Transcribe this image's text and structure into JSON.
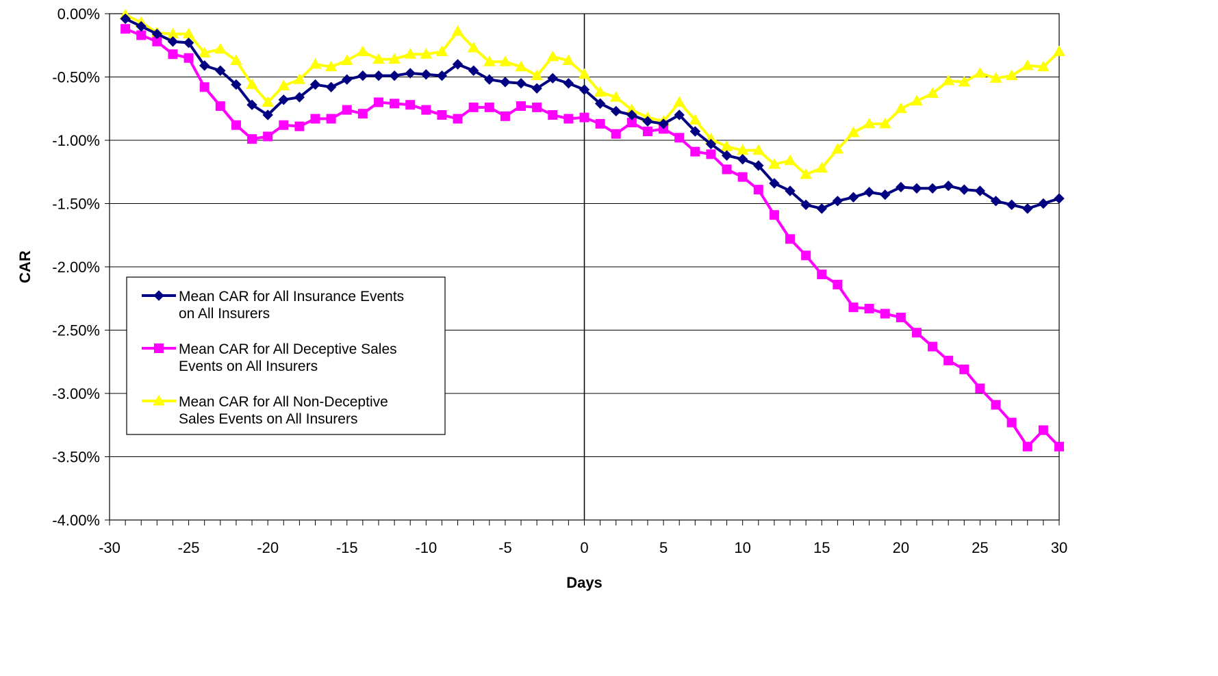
{
  "chart_data": {
    "type": "line",
    "xlabel": "Days",
    "ylabel": "CAR",
    "xlim": [
      -30,
      30
    ],
    "ylim": [
      -4.0,
      0.0
    ],
    "y_ticks": [
      0.0,
      -0.5,
      -1.0,
      -1.5,
      -2.0,
      -2.5,
      -3.0,
      -3.5,
      -4.0
    ],
    "y_tick_labels": [
      "0.00%",
      "-0.50%",
      "-1.00%",
      "-1.50%",
      "-2.00%",
      "-2.50%",
      "-3.00%",
      "-3.50%",
      "-4.00%"
    ],
    "x_ticks": [
      -30,
      -25,
      -20,
      -15,
      -10,
      -5,
      0,
      5,
      10,
      15,
      20,
      25,
      30
    ],
    "x_tick_labels": [
      "-30",
      "-25",
      "-20",
      "-15",
      "-10",
      "-5",
      "0",
      "5",
      "10",
      "15",
      "20",
      "25",
      "30"
    ],
    "grid": "horizontal",
    "reference_line_x": 0,
    "legend_position": "middle-left",
    "x": [
      -29,
      -28,
      -27,
      -26,
      -25,
      -24,
      -23,
      -22,
      -21,
      -20,
      -19,
      -18,
      -17,
      -16,
      -15,
      -14,
      -13,
      -12,
      -11,
      -10,
      -9,
      -8,
      -7,
      -6,
      -5,
      -4,
      -3,
      -2,
      -1,
      0,
      1,
      2,
      3,
      4,
      5,
      6,
      7,
      8,
      9,
      10,
      11,
      12,
      13,
      14,
      15,
      16,
      17,
      18,
      19,
      20,
      21,
      22,
      23,
      24,
      25,
      26,
      27,
      28,
      29,
      30
    ],
    "series": [
      {
        "name": "Mean CAR for All Insurance Events on All Insurers",
        "legend_lines": [
          "Mean CAR for All Insurance Events",
          "on All Insurers"
        ],
        "color": "#000080",
        "marker": "diamond",
        "values": [
          -0.04,
          -0.1,
          -0.16,
          -0.22,
          -0.23,
          -0.41,
          -0.45,
          -0.56,
          -0.72,
          -0.8,
          -0.68,
          -0.66,
          -0.56,
          -0.58,
          -0.52,
          -0.49,
          -0.49,
          -0.49,
          -0.47,
          -0.48,
          -0.49,
          -0.4,
          -0.45,
          -0.52,
          -0.54,
          -0.55,
          -0.59,
          -0.51,
          -0.55,
          -0.6,
          -0.71,
          -0.77,
          -0.8,
          -0.85,
          -0.87,
          -0.8,
          -0.93,
          -1.03,
          -1.12,
          -1.15,
          -1.2,
          -1.34,
          -1.4,
          -1.51,
          -1.54,
          -1.48,
          -1.45,
          -1.41,
          -1.43,
          -1.37,
          -1.38,
          -1.38,
          -1.36,
          -1.39,
          -1.4,
          -1.48,
          -1.51,
          -1.54,
          -1.5,
          -1.46
        ]
      },
      {
        "name": "Mean CAR for All Deceptive Sales Events on All Insurers",
        "legend_lines": [
          "Mean CAR for All Deceptive Sales",
          "Events on All Insurers"
        ],
        "color": "#ff00ff",
        "marker": "square",
        "values": [
          -0.12,
          -0.17,
          -0.22,
          -0.32,
          -0.35,
          -0.58,
          -0.73,
          -0.88,
          -0.99,
          -0.97,
          -0.88,
          -0.89,
          -0.83,
          -0.83,
          -0.76,
          -0.79,
          -0.7,
          -0.71,
          -0.72,
          -0.76,
          -0.8,
          -0.83,
          -0.74,
          -0.74,
          -0.81,
          -0.73,
          -0.74,
          -0.8,
          -0.83,
          -0.82,
          -0.87,
          -0.95,
          -0.86,
          -0.93,
          -0.91,
          -0.98,
          -1.09,
          -1.11,
          -1.23,
          -1.29,
          -1.39,
          -1.59,
          -1.78,
          -1.91,
          -2.06,
          -2.14,
          -2.32,
          -2.33,
          -2.37,
          -2.4,
          -2.52,
          -2.63,
          -2.74,
          -2.81,
          -2.96,
          -3.09,
          -3.23,
          -3.42,
          -3.29,
          -3.42
        ]
      },
      {
        "name": "Mean CAR for All Non-Deceptive Sales Events on All Insurers",
        "legend_lines": [
          "Mean CAR for All Non-Deceptive",
          "Sales Events on All Insurers"
        ],
        "color": "#ffff00",
        "marker": "triangle",
        "values": [
          -0.01,
          -0.07,
          -0.15,
          -0.16,
          -0.16,
          -0.31,
          -0.28,
          -0.37,
          -0.56,
          -0.7,
          -0.57,
          -0.52,
          -0.4,
          -0.42,
          -0.37,
          -0.3,
          -0.36,
          -0.36,
          -0.32,
          -0.32,
          -0.3,
          -0.14,
          -0.27,
          -0.38,
          -0.38,
          -0.42,
          -0.49,
          -0.34,
          -0.37,
          -0.48,
          -0.62,
          -0.66,
          -0.76,
          -0.82,
          -0.85,
          -0.7,
          -0.84,
          -0.99,
          -1.05,
          -1.08,
          -1.08,
          -1.19,
          -1.16,
          -1.27,
          -1.22,
          -1.07,
          -0.94,
          -0.87,
          -0.87,
          -0.75,
          -0.69,
          -0.63,
          -0.53,
          -0.54,
          -0.47,
          -0.51,
          -0.49,
          -0.41,
          -0.42,
          -0.3
        ]
      }
    ]
  }
}
